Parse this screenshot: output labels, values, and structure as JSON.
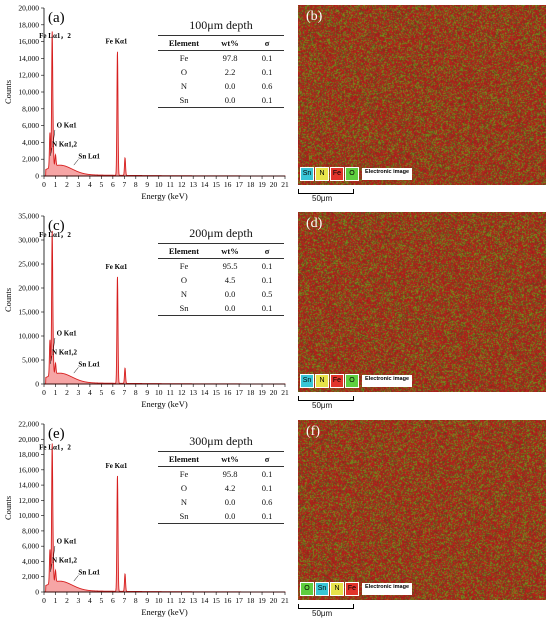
{
  "chart_data": [
    {
      "type": "line",
      "panel_label": "(a)",
      "depth_title": "100μm depth",
      "xlabel": "Energy (keV)",
      "ylabel": "Counts",
      "xlim": [
        0,
        21
      ],
      "ylim": [
        0,
        20000
      ],
      "yticks": [
        "0",
        "2,000",
        "4,000",
        "6,000",
        "8,000",
        "10,000",
        "12,000",
        "14,000",
        "16,000",
        "18,000",
        "20,000"
      ],
      "xticks": [
        "0",
        "1",
        "2",
        "3",
        "4",
        "5",
        "6",
        "7",
        "8",
        "9",
        "10",
        "11",
        "12",
        "13",
        "14",
        "15",
        "16",
        "17",
        "18",
        "19",
        "20",
        "21"
      ],
      "peaks": [
        {
          "x": 0.52,
          "y": 4200
        },
        {
          "x": 0.71,
          "y": 15500
        },
        {
          "x": 0.79,
          "y": 3000
        },
        {
          "x": 1.0,
          "y": 1300
        },
        {
          "x": 6.4,
          "y": 14800
        },
        {
          "x": 7.06,
          "y": 2100
        }
      ],
      "annotations": [
        "Fe Lα1，2",
        "Fe Kα1",
        "O Kα1",
        "N Kα1,2",
        "Sn Lα1"
      ],
      "table": {
        "headers": [
          "Element",
          "wt%",
          "σ"
        ],
        "rows": [
          [
            "Fe",
            "97.8",
            "0.1"
          ],
          [
            "O",
            "2.2",
            "0.1"
          ],
          [
            "N",
            "0.0",
            "0.6"
          ],
          [
            "Sn",
            "0.0",
            "0.1"
          ]
        ]
      }
    },
    {
      "type": "line",
      "panel_label": "(c)",
      "depth_title": "200μm depth",
      "xlabel": "Energy (keV)",
      "ylabel": "Counts",
      "xlim": [
        0,
        21
      ],
      "ylim": [
        0,
        35000
      ],
      "yticks": [
        "0",
        "5,000",
        "10,000",
        "15,000",
        "20,000",
        "25,000",
        "30,000",
        "35,000"
      ],
      "xticks": [
        "0",
        "1",
        "2",
        "3",
        "4",
        "5",
        "6",
        "7",
        "8",
        "9",
        "10",
        "11",
        "12",
        "13",
        "14",
        "15",
        "16",
        "17",
        "18",
        "19",
        "20",
        "21"
      ],
      "peaks": [
        {
          "x": 0.52,
          "y": 7500
        },
        {
          "x": 0.71,
          "y": 29000
        },
        {
          "x": 0.79,
          "y": 5000
        },
        {
          "x": 1.0,
          "y": 2200
        },
        {
          "x": 6.4,
          "y": 22300
        },
        {
          "x": 7.06,
          "y": 3200
        }
      ],
      "annotations": [
        "Fe Lα1，2",
        "Fe Kα1",
        "O Kα1",
        "N Kα1,2",
        "Sn Lα1"
      ],
      "table": {
        "headers": [
          "Element",
          "wt%",
          "σ"
        ],
        "rows": [
          [
            "Fe",
            "95.5",
            "0.1"
          ],
          [
            "O",
            "4.5",
            "0.1"
          ],
          [
            "N",
            "0.0",
            "0.5"
          ],
          [
            "Sn",
            "0.0",
            "0.1"
          ]
        ]
      }
    },
    {
      "type": "line",
      "panel_label": "(e)",
      "depth_title": "300μm depth",
      "xlabel": "Energy (keV)",
      "ylabel": "Counts",
      "xlim": [
        0,
        21
      ],
      "ylim": [
        0,
        22000
      ],
      "yticks": [
        "0",
        "2,000",
        "4,000",
        "6,000",
        "8,000",
        "10,000",
        "12,000",
        "14,000",
        "16,000",
        "18,000",
        "20,000",
        "22,000"
      ],
      "xticks": [
        "0",
        "1",
        "2",
        "3",
        "4",
        "5",
        "6",
        "7",
        "8",
        "9",
        "10",
        "11",
        "12",
        "13",
        "14",
        "15",
        "16",
        "17",
        "18",
        "19",
        "20",
        "21"
      ],
      "peaks": [
        {
          "x": 0.52,
          "y": 4500
        },
        {
          "x": 0.71,
          "y": 17600
        },
        {
          "x": 0.79,
          "y": 3200
        },
        {
          "x": 1.0,
          "y": 1500
        },
        {
          "x": 6.4,
          "y": 15200
        },
        {
          "x": 7.06,
          "y": 2300
        }
      ],
      "annotations": [
        "Fe Lα1，2",
        "Fe Kα1",
        "O Kα1",
        "N Kα1,2",
        "Sn Lα1"
      ],
      "table": {
        "headers": [
          "Element",
          "wt%",
          "σ"
        ],
        "rows": [
          [
            "Fe",
            "95.8",
            "0.1"
          ],
          [
            "O",
            "4.2",
            "0.1"
          ],
          [
            "N",
            "0.0",
            "0.6"
          ],
          [
            "Sn",
            "0.0",
            "0.1"
          ]
        ]
      }
    }
  ],
  "maps": [
    {
      "label": "(b)",
      "legend": [
        {
          "text": "Sn",
          "color": "#39c6d6"
        },
        {
          "text": "N",
          "color": "#e7e34a"
        },
        {
          "text": "Fe",
          "color": "#e2342b"
        },
        {
          "text": "O",
          "color": "#5fcf3f"
        }
      ],
      "electronic": "Electronic image",
      "scale": "50μm"
    },
    {
      "label": "(d)",
      "legend": [
        {
          "text": "Sn",
          "color": "#39c6d6"
        },
        {
          "text": "N",
          "color": "#e7e34a"
        },
        {
          "text": "Fe",
          "color": "#e2342b"
        },
        {
          "text": "O",
          "color": "#5fcf3f"
        }
      ],
      "electronic": "Electronic image",
      "scale": "50μm"
    },
    {
      "label": "(f)",
      "legend": [
        {
          "text": "O",
          "color": "#5fcf3f"
        },
        {
          "text": "Sn",
          "color": "#39c6d6"
        },
        {
          "text": "N",
          "color": "#e7e34a"
        },
        {
          "text": "Fe",
          "color": "#e2342b"
        }
      ],
      "electronic": "Electronic image",
      "scale": "50μm"
    }
  ]
}
